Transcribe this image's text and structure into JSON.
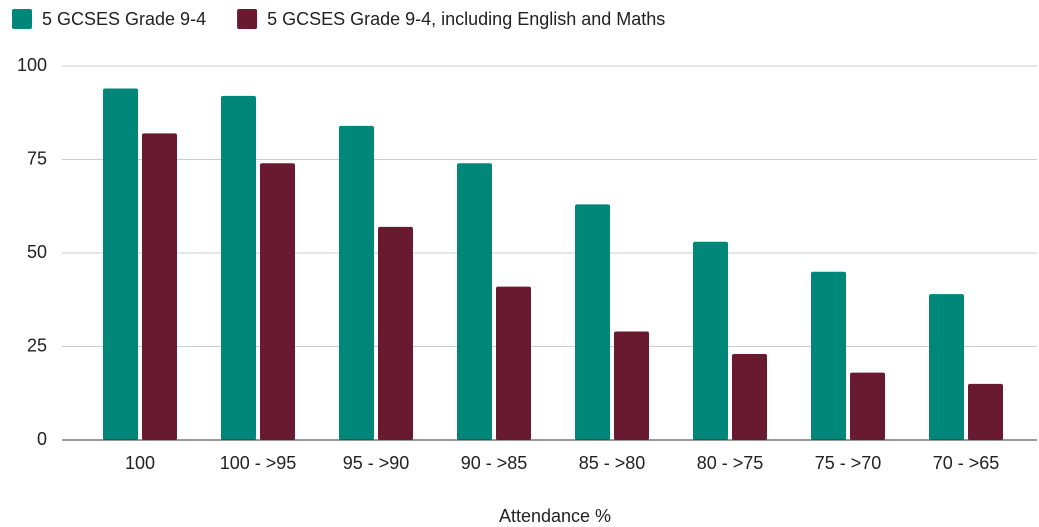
{
  "chart_data": {
    "type": "bar",
    "x_label": "Attendance %",
    "categories": [
      "100",
      "100 - >95",
      "95 - >90",
      "90 - >85",
      "85 - >80",
      "80 - >75",
      "75 - >70",
      "70 - >65"
    ],
    "series": [
      {
        "name": "5 GCSES Grade 9-4",
        "color": "#00877a",
        "values": [
          94,
          92,
          84,
          74,
          63,
          53,
          45,
          39
        ]
      },
      {
        "name": "5 GCSES Grade 9-4, including English and Maths",
        "color": "#6a1a30",
        "values": [
          82,
          74,
          57,
          41,
          29,
          23,
          18,
          15
        ]
      }
    ],
    "ylim": [
      0,
      100
    ],
    "yticks": [
      0,
      25,
      50,
      75,
      100
    ],
    "grid": true,
    "legend": "top"
  }
}
